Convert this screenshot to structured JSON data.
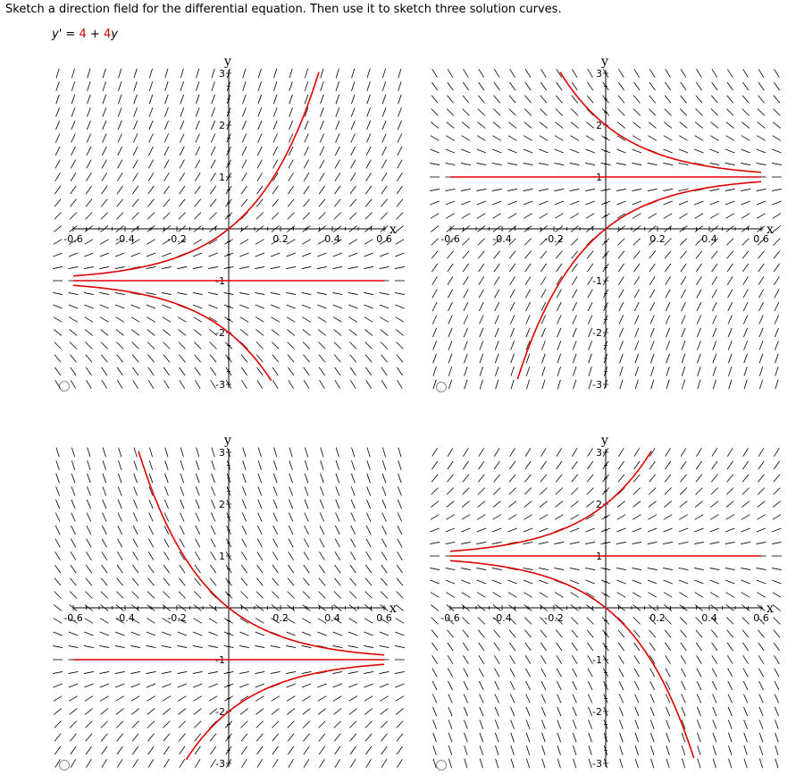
{
  "question": {
    "prompt": "Sketch a direction field for the differential equation. Then use it to sketch three solution curves.",
    "equation": {
      "lhs": "y'",
      "equals": "=",
      "c1": "4",
      "plus": "+",
      "c2": "4",
      "var": "y"
    }
  },
  "colors": {
    "curve": "#e00000",
    "field": "#000000",
    "axis": "#000000",
    "radio_border": "#8a8a8a"
  },
  "options": [
    {
      "id": "A",
      "slope_sign": 1,
      "equilibrium": -1,
      "axis_labels": {
        "x": "x",
        "y": "y"
      },
      "x_ticks": [
        "-0.6",
        "-0.4",
        "-0.2",
        "0.2",
        "0.4",
        "0.6"
      ],
      "y_ticks": [
        "3",
        "2",
        "1",
        "-1",
        "-2",
        "-3"
      ]
    },
    {
      "id": "B",
      "slope_sign": -1,
      "equilibrium": 1,
      "axis_labels": {
        "x": "x",
        "y": "y"
      },
      "x_ticks": [
        "-0.6",
        "-0.4",
        "-0.2",
        "0.2",
        "0.4",
        "0.6"
      ],
      "y_ticks": [
        "3",
        "2",
        "1",
        "-1",
        "-2",
        "-3"
      ]
    },
    {
      "id": "C",
      "slope_sign": -1,
      "equilibrium": -1,
      "axis_labels": {
        "x": "x",
        "y": "y"
      },
      "x_ticks": [
        "-0.6",
        "-0.4",
        "-0.2",
        "0.2",
        "0.4",
        "0.6"
      ],
      "y_ticks": [
        "3",
        "2",
        "1",
        "-1",
        "-2",
        "-3"
      ]
    },
    {
      "id": "D",
      "slope_sign": 1,
      "equilibrium": 1,
      "axis_labels": {
        "x": "x",
        "y": "y"
      },
      "x_ticks": [
        "-0.6",
        "-0.4",
        "-0.2",
        "0.2",
        "0.4",
        "0.6"
      ],
      "y_ticks": [
        "3",
        "2",
        "1",
        "-1",
        "-2",
        "-3"
      ]
    }
  ]
}
